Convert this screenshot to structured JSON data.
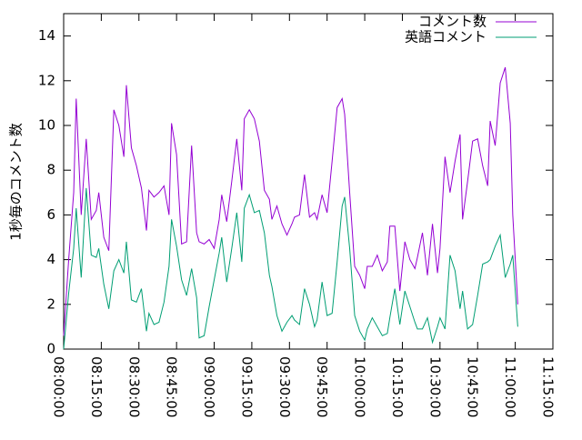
{
  "chart_data": {
    "type": "line",
    "y_label": "1秒毎のコメント数",
    "x": [
      "08:00:00",
      "08:02:00",
      "08:04:00",
      "08:05:00",
      "08:07:00",
      "08:09:00",
      "08:11:00",
      "08:13:00",
      "08:14:00",
      "08:16:00",
      "08:18:00",
      "08:20:00",
      "08:22:00",
      "08:24:00",
      "08:25:00",
      "08:27:00",
      "08:29:00",
      "08:31:00",
      "08:33:00",
      "08:34:00",
      "08:36:00",
      "08:38:00",
      "08:40:00",
      "08:42:00",
      "08:43:00",
      "08:45:00",
      "08:47:00",
      "08:49:00",
      "08:51:00",
      "08:53:00",
      "08:54:00",
      "08:56:00",
      "08:58:00",
      "09:00:00",
      "09:02:00",
      "09:03:00",
      "09:05:00",
      "09:07:00",
      "09:09:00",
      "09:11:00",
      "09:12:00",
      "09:14:00",
      "09:16:00",
      "09:18:00",
      "09:20:00",
      "09:22:00",
      "09:23:00",
      "09:25:00",
      "09:27:00",
      "09:29:00",
      "09:31:00",
      "09:32:00",
      "09:34:00",
      "09:36:00",
      "09:38:00",
      "09:40:00",
      "09:41:00",
      "09:43:00",
      "09:45:00",
      "09:47:00",
      "09:49:00",
      "09:51:00",
      "09:52:00",
      "09:54:00",
      "09:56:00",
      "09:58:00",
      "10:00:00",
      "10:01:00",
      "10:03:00",
      "10:05:00",
      "10:07:00",
      "10:09:00",
      "10:10:00",
      "10:12:00",
      "10:14:00",
      "10:16:00",
      "10:18:00",
      "10:20:00",
      "10:21:00",
      "10:23:00",
      "10:25:00",
      "10:27:00",
      "10:29:00",
      "10:30:00",
      "10:32:00",
      "10:34:00",
      "10:36:00",
      "10:38:00",
      "10:39:00",
      "10:41:00",
      "10:43:00",
      "10:45:00",
      "10:47:00",
      "10:49:00",
      "10:50:00",
      "10:52:00",
      "10:54:00",
      "10:56:00",
      "10:58:00",
      "10:59:00",
      "11:01:00"
    ],
    "series": [
      {
        "name": "コメント数",
        "color": "#9400d3",
        "values": [
          0.6,
          4,
          7,
          11.2,
          6,
          9.4,
          5.8,
          6.2,
          7,
          5,
          4.4,
          10.7,
          10,
          8.6,
          11.8,
          9,
          8.2,
          7.2,
          5.3,
          7.1,
          6.8,
          7,
          7.3,
          6,
          10.1,
          8.7,
          4.7,
          4.8,
          9.1,
          5.2,
          4.8,
          4.7,
          4.9,
          4.5,
          5.8,
          6.9,
          5.7,
          7.5,
          9.4,
          7.1,
          10.3,
          10.7,
          10.3,
          9.3,
          7.1,
          6.7,
          5.8,
          6.4,
          5.6,
          5.1,
          5.6,
          5.9,
          6,
          7.8,
          5.9,
          6.1,
          5.8,
          6.9,
          6.1,
          8.4,
          10.8,
          11.2,
          10.5,
          7,
          3.7,
          3.3,
          2.7,
          3.7,
          3.7,
          4.2,
          3.5,
          3.9,
          5.5,
          5.5,
          2.6,
          4.8,
          4,
          3.6,
          4.1,
          5.2,
          3.3,
          5.6,
          3.4,
          4.5,
          8.6,
          7,
          8.4,
          9.6,
          5.8,
          7.5,
          9.3,
          9.4,
          8.2,
          7.3,
          10.2,
          9.1,
          11.9,
          12.6,
          10.1,
          6,
          2
        ]
      },
      {
        "name": "英語コメント",
        "color": "#009e73",
        "values": [
          0,
          2.5,
          4.5,
          6.3,
          3.2,
          7.2,
          4.2,
          4.1,
          4.5,
          2.9,
          1.8,
          3.5,
          4,
          3.4,
          4.8,
          2.2,
          2.1,
          2.7,
          0.8,
          1.6,
          1.1,
          1.2,
          2.1,
          3.7,
          5.8,
          4.6,
          3.1,
          2.4,
          3.6,
          2.3,
          0.5,
          0.6,
          1.9,
          3.1,
          4.3,
          5,
          3,
          4.5,
          6.1,
          3.9,
          6.3,
          6.9,
          6.1,
          6.2,
          5.2,
          3.3,
          2.8,
          1.5,
          0.8,
          1.2,
          1.5,
          1.3,
          1.1,
          2.7,
          2,
          1,
          1.3,
          3,
          1.5,
          1.6,
          3.9,
          6.4,
          6.8,
          4.5,
          1.5,
          0.8,
          0.4,
          0.9,
          1.4,
          1,
          0.6,
          0.7,
          1.4,
          2.7,
          1.1,
          2.6,
          1.9,
          1.2,
          0.9,
          0.9,
          1.4,
          0.3,
          1,
          1.4,
          0.9,
          4.2,
          3.5,
          1.8,
          2.6,
          0.9,
          1.1,
          2.4,
          3.8,
          3.9,
          4,
          4.6,
          5.1,
          3.2,
          3.8,
          4.2,
          1
        ]
      }
    ],
    "xlim": [
      "08:00:00",
      "11:15:00"
    ],
    "xticks": [
      "08:00:00",
      "08:15:00",
      "08:30:00",
      "08:45:00",
      "09:00:00",
      "09:15:00",
      "09:30:00",
      "09:45:00",
      "10:00:00",
      "10:15:00",
      "10:30:00",
      "10:45:00",
      "11:00:00",
      "11:15:00"
    ],
    "ylim": [
      0,
      15
    ],
    "yticks": [
      0,
      2,
      4,
      6,
      8,
      10,
      12,
      14
    ],
    "grid": false,
    "legend": "top-right"
  }
}
